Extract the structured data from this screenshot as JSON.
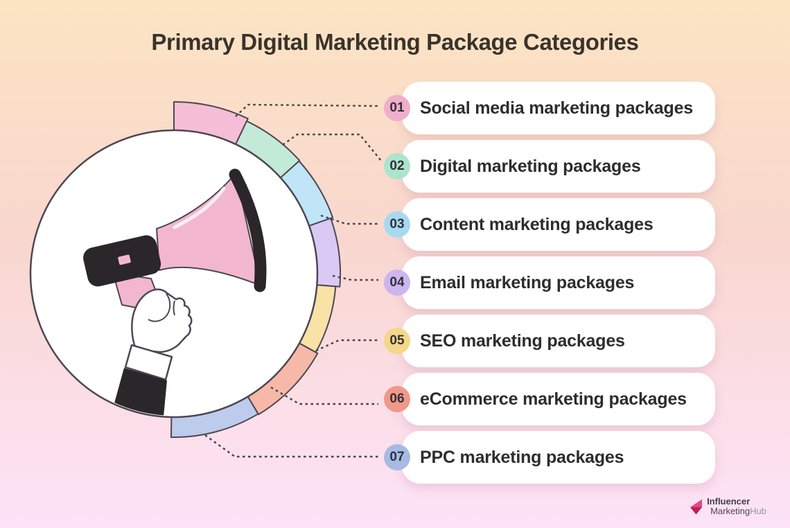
{
  "title": "Primary Digital Marketing Package Categories",
  "items": [
    {
      "number": "01",
      "label": "Social media marketing packages",
      "badge_color": "#f1aecb",
      "segment_color": "#f5bed6"
    },
    {
      "number": "02",
      "label": "Digital marketing packages",
      "badge_color": "#ace4cc",
      "segment_color": "#c3ead7"
    },
    {
      "number": "03",
      "label": "Content marketing packages",
      "badge_color": "#a7d9f1",
      "segment_color": "#c0e5f7"
    },
    {
      "number": "04",
      "label": "Email marketing packages",
      "badge_color": "#ccb6ef",
      "segment_color": "#dac9f5"
    },
    {
      "number": "05",
      "label": "SEO marketing packages",
      "badge_color": "#f4d78a",
      "segment_color": "#f8e2a6"
    },
    {
      "number": "06",
      "label": "eCommerce marketing packages",
      "badge_color": "#f09889",
      "segment_color": "#f6b9a7"
    },
    {
      "number": "07",
      "label": "PPC marketing packages",
      "badge_color": "#a5bbe3",
      "segment_color": "#bdcbed"
    }
  ],
  "footer": {
    "brand_line1": "Influencer",
    "brand_line2_dark": "Marketing",
    "brand_line2_light": "Hub"
  },
  "colors": {
    "background_top": "#fce4c3",
    "background_middle": "#f9d7cf",
    "background_bottom": "#fde3f8",
    "card_background": "#ffffff",
    "title_text": "#3a332b",
    "item_text": "#2e2c2e",
    "badge_text": "#33303a",
    "outline": "#4d4753",
    "dotted_line": "#45404a",
    "megaphone_pink": "#f2b7cf",
    "megaphone_black": "#2b2629"
  }
}
